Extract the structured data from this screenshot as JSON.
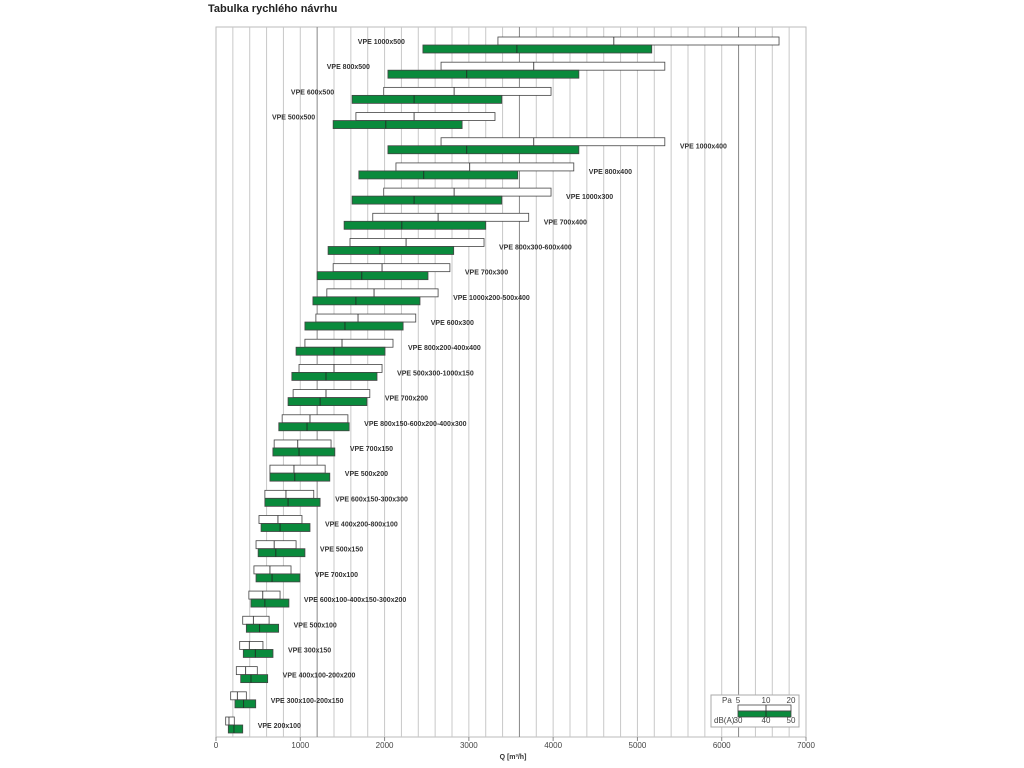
{
  "chart_data": {
    "type": "bar",
    "title": "Tabulka rychlého návrhu",
    "xlabel": "Q [m³/h]",
    "xlim": [
      0,
      7000
    ],
    "xticks": [
      0,
      1000,
      2000,
      3000,
      4000,
      5000,
      6000,
      7000
    ],
    "grid": "vertical every 200",
    "colors": {
      "pressure": "#ffffff",
      "noise": "#0a8a3c",
      "grid": "#c8c8c8"
    },
    "legend": {
      "position": "bottom-right",
      "pa_label": "Pa",
      "pa_ticks": [
        "5",
        "10",
        "20"
      ],
      "db_label": "dB(A)",
      "db_ticks": [
        "30",
        "40",
        "50"
      ]
    },
    "rows": [
      {
        "name": "VPE 1000x500",
        "pa": [
          3345,
          4720,
          6680
        ],
        "db": [
          2455,
          3570,
          5170
        ],
        "label_side": "left"
      },
      {
        "name": "VPE 800x500",
        "pa": [
          2670,
          3770,
          5325
        ],
        "db": [
          2040,
          2975,
          4305
        ],
        "label_side": "left"
      },
      {
        "name": "VPE 600x500",
        "pa": [
          1990,
          2825,
          3975
        ],
        "db": [
          1615,
          2350,
          3390
        ],
        "label_side": "left"
      },
      {
        "name": "VPE 500x500",
        "pa": [
          1660,
          2350,
          3310
        ],
        "db": [
          1390,
          2015,
          2920
        ],
        "label_side": "left"
      },
      {
        "name": "VPE 1000x400",
        "pa": [
          2670,
          3770,
          5325
        ],
        "db": [
          2040,
          2975,
          4305
        ],
        "label_side": "right"
      },
      {
        "name": "VPE 800x400",
        "pa": [
          2135,
          3010,
          4245
        ],
        "db": [
          1695,
          2465,
          3580
        ],
        "label_side": "right"
      },
      {
        "name": "VPE 1000x300",
        "pa": [
          1990,
          2825,
          3975
        ],
        "db": [
          1615,
          2350,
          3390
        ],
        "label_side": "right"
      },
      {
        "name": "VPE 700x400",
        "pa": [
          1860,
          2635,
          3710
        ],
        "db": [
          1520,
          2205,
          3200
        ],
        "label_side": "right"
      },
      {
        "name": "VPE 800x300-600x400",
        "pa": [
          1590,
          2255,
          3180
        ],
        "db": [
          1330,
          1945,
          2820
        ],
        "label_side": "right"
      },
      {
        "name": "VPE 700x300",
        "pa": [
          1390,
          1970,
          2775
        ],
        "db": [
          1200,
          1730,
          2515
        ],
        "label_side": "right"
      },
      {
        "name": "VPE 1000x200-500x400",
        "pa": [
          1315,
          1875,
          2635
        ],
        "db": [
          1150,
          1660,
          2420
        ],
        "label_side": "right"
      },
      {
        "name": "VPE 600x300",
        "pa": [
          1185,
          1685,
          2370
        ],
        "db": [
          1055,
          1530,
          2220
        ],
        "label_side": "right"
      },
      {
        "name": "VPE 800x200-400x400",
        "pa": [
          1055,
          1495,
          2100
        ],
        "db": [
          950,
          1400,
          2005
        ],
        "label_side": "right"
      },
      {
        "name": "VPE 500x300-1000x150",
        "pa": [
          985,
          1400,
          1970
        ],
        "db": [
          900,
          1305,
          1910
        ],
        "label_side": "right"
      },
      {
        "name": "VPE 700x200",
        "pa": [
          915,
          1305,
          1825
        ],
        "db": [
          855,
          1235,
          1790
        ],
        "label_side": "right"
      },
      {
        "name": "VPE 800x150-600x200-400x300",
        "pa": [
          785,
          1115,
          1565
        ],
        "db": [
          745,
          1080,
          1580
        ],
        "label_side": "right"
      },
      {
        "name": "VPE 700x150",
        "pa": [
          690,
          970,
          1365
        ],
        "db": [
          675,
          985,
          1410
        ],
        "label_side": "right"
      },
      {
        "name": "VPE 500x200",
        "pa": [
          640,
          925,
          1295
        ],
        "db": [
          640,
          935,
          1350
        ],
        "label_side": "right"
      },
      {
        "name": "VPE 600x150-300x300",
        "pa": [
          580,
          830,
          1160
        ],
        "db": [
          580,
          855,
          1235
        ],
        "label_side": "right"
      },
      {
        "name": "VPE 400x200-800x100",
        "pa": [
          510,
          735,
          1020
        ],
        "db": [
          535,
          760,
          1115
        ],
        "label_side": "right"
      },
      {
        "name": "VPE 500x150",
        "pa": [
          475,
          690,
          950
        ],
        "db": [
          500,
          710,
          1055
        ],
        "label_side": "right"
      },
      {
        "name": "VPE 700x100",
        "pa": [
          450,
          640,
          890
        ],
        "db": [
          475,
          665,
          995
        ],
        "label_side": "right"
      },
      {
        "name": "VPE 600x100-400x150-300x200",
        "pa": [
          390,
          555,
          760
        ],
        "db": [
          415,
          580,
          865
        ],
        "label_side": "right"
      },
      {
        "name": "VPE 500x100",
        "pa": [
          317,
          443,
          630
        ],
        "db": [
          360,
          518,
          743
        ],
        "label_side": "right"
      },
      {
        "name": "VPE 300x150",
        "pa": [
          281,
          395,
          557
        ],
        "db": [
          324,
          466,
          676
        ],
        "label_side": "right"
      },
      {
        "name": "VPE 400x100-200x200",
        "pa": [
          241,
          352,
          490
        ],
        "db": [
          293,
          415,
          613
        ],
        "label_side": "right"
      },
      {
        "name": "VPE 300x100-200x150",
        "pa": [
          174,
          253,
          360
        ],
        "db": [
          225,
          328,
          471
        ],
        "label_side": "right"
      },
      {
        "name": "VPE 200x100",
        "pa": [
          115,
          154,
          217
        ],
        "db": [
          146,
          213,
          317
        ],
        "label_side": "right"
      }
    ]
  }
}
